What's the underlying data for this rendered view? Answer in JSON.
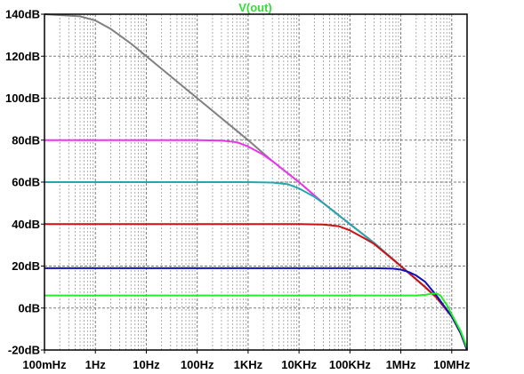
{
  "chart_data": {
    "type": "line",
    "title": "V(out)",
    "title_color": "#33dd33",
    "xlabel": "",
    "ylabel": "",
    "x_scale": "log",
    "xlim": [
      0.1,
      20000000
    ],
    "ylim": [
      -20,
      140
    ],
    "grid": true,
    "x_ticks": [
      {
        "value": 0.1,
        "label": "100mHz"
      },
      {
        "value": 1,
        "label": "1Hz"
      },
      {
        "value": 10,
        "label": "10Hz"
      },
      {
        "value": 100,
        "label": "100Hz"
      },
      {
        "value": 1000,
        "label": "1KHz"
      },
      {
        "value": 10000,
        "label": "10KHz"
      },
      {
        "value": 100000,
        "label": "100KHz"
      },
      {
        "value": 1000000,
        "label": "1MHz"
      },
      {
        "value": 10000000,
        "label": "10MHz"
      }
    ],
    "y_ticks": [
      {
        "value": 140,
        "label": "140dB"
      },
      {
        "value": 120,
        "label": "120dB"
      },
      {
        "value": 100,
        "label": "100dB"
      },
      {
        "value": 80,
        "label": "80dB"
      },
      {
        "value": 60,
        "label": "60dB"
      },
      {
        "value": 40,
        "label": "40dB"
      },
      {
        "value": 20,
        "label": "20dB"
      },
      {
        "value": 0,
        "label": "0dB"
      },
      {
        "value": -20,
        "label": "-20dB"
      }
    ],
    "series": [
      {
        "color": "#808080",
        "x": [
          0.1,
          0.5,
          1,
          2,
          5,
          10,
          100,
          1000,
          3000,
          10000,
          30000,
          100000,
          300000,
          1000000,
          3000000,
          5000000,
          10000000,
          15000000,
          20000000
        ],
        "y": [
          140,
          139,
          137,
          133,
          126,
          120,
          100,
          80,
          70,
          60,
          50,
          40,
          31,
          20,
          10,
          5,
          -4,
          -12,
          -20
        ]
      },
      {
        "color": "#ee33ee",
        "x": [
          0.1,
          100,
          300,
          600,
          1000,
          2000,
          3000,
          10000,
          30000,
          100000,
          300000,
          1000000,
          3000000,
          5000000,
          10000000,
          15000000,
          20000000
        ],
        "y": [
          80,
          80,
          79.8,
          79,
          77,
          73,
          70,
          60,
          50,
          40,
          31,
          20,
          10,
          5,
          -4,
          -12,
          -20
        ]
      },
      {
        "color": "#22aaaa",
        "x": [
          0.1,
          1000,
          3000,
          6000,
          10000,
          20000,
          30000,
          100000,
          300000,
          1000000,
          3000000,
          5000000,
          10000000,
          15000000,
          20000000
        ],
        "y": [
          60,
          60,
          59.8,
          59,
          57,
          53,
          50,
          40,
          31,
          20,
          10,
          5,
          -4,
          -12,
          -20
        ]
      },
      {
        "color": "#cc1111",
        "x": [
          0.1,
          10000,
          30000,
          60000,
          100000,
          200000,
          300000,
          1000000,
          3000000,
          5000000,
          10000000,
          15000000,
          20000000
        ],
        "y": [
          40,
          40,
          39.8,
          39,
          37,
          33,
          30.5,
          20,
          10,
          5,
          -4,
          -12,
          -20
        ]
      },
      {
        "color": "#1111bb",
        "x": [
          0.1,
          300000,
          700000,
          1000000,
          1500000,
          2000000,
          3000000,
          5000000,
          10000000,
          15000000,
          20000000
        ],
        "y": [
          19,
          19,
          18.8,
          18.3,
          17,
          15.5,
          12.5,
          6,
          -4,
          -12,
          -20
        ]
      },
      {
        "color": "#22ee22",
        "x": [
          0.1,
          2000000,
          3000000,
          4000000,
          5000000,
          6000000,
          8000000,
          10000000,
          15000000,
          20000000
        ],
        "y": [
          6,
          6,
          6.3,
          6.8,
          7,
          6,
          1.5,
          -3,
          -11,
          -19
        ]
      }
    ]
  }
}
